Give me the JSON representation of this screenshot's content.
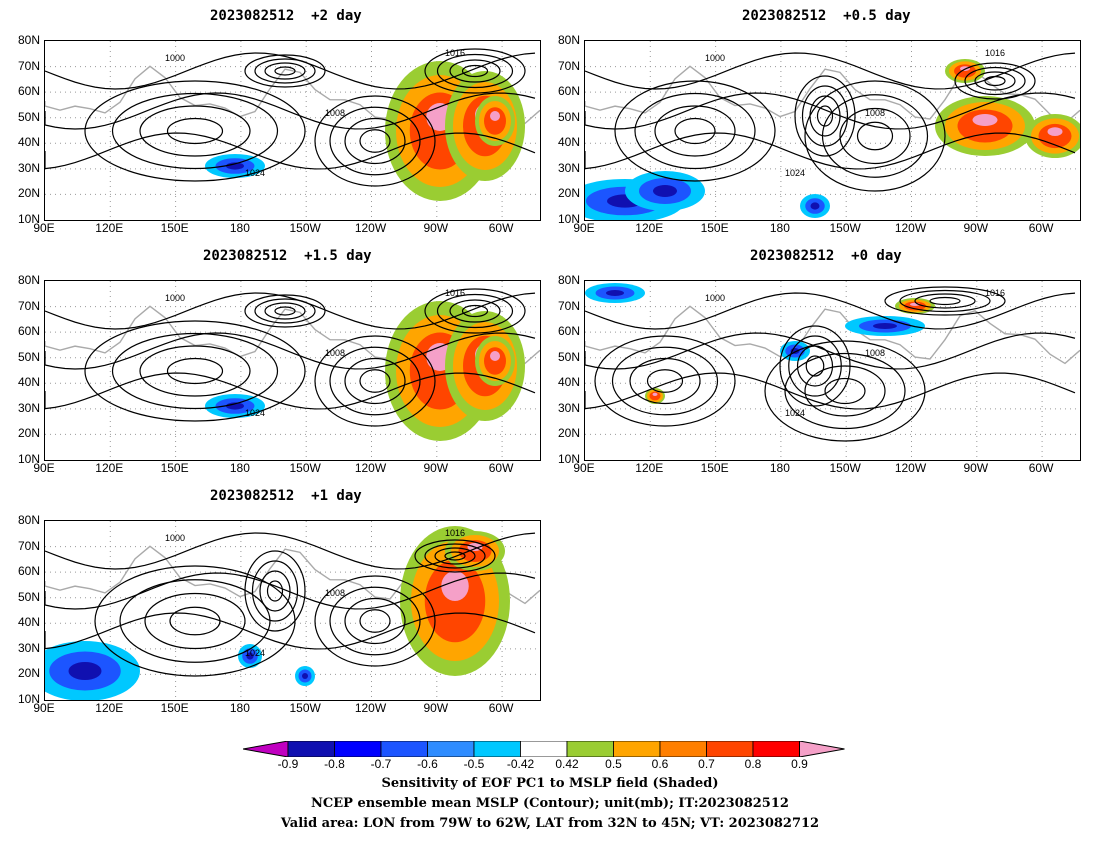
{
  "panels": [
    {
      "title": "2023082512  +2 day",
      "pattern": "a"
    },
    {
      "title": "2023082512  +0.5 day",
      "pattern": "b"
    },
    {
      "title": "2023082512  +1.5 day",
      "pattern": "a"
    },
    {
      "title": "2023082512  +0 day",
      "pattern": "c"
    },
    {
      "title": "2023082512  +1 day",
      "pattern": "d"
    }
  ],
  "lat_ticks": [
    "80N",
    "70N",
    "60N",
    "50N",
    "40N",
    "30N",
    "20N",
    "10N"
  ],
  "lon_ticks": [
    "90E",
    "120E",
    "150E",
    "180",
    "150W",
    "120W",
    "90W",
    "60W"
  ],
  "contour_labels": [
    "1000",
    "1008",
    "1016",
    "1024"
  ],
  "colorbar": {
    "labels": [
      "-0.9",
      "-0.8",
      "-0.7",
      "-0.6",
      "-0.5",
      "-0.42",
      "0.42",
      "0.5",
      "0.6",
      "0.7",
      "0.8",
      "0.9"
    ],
    "colors": [
      "#1010b0",
      "#0000ff",
      "#1c55ff",
      "#2e8cff",
      "#00c8ff",
      "#ffffff",
      "#9acd32",
      "#ffa500",
      "#ff7f00",
      "#ff4500",
      "#ff0000"
    ],
    "low_color": "#c000c0",
    "high_color": "#f5a0c8"
  },
  "caption": {
    "line1": "Sensitivity of EOF PC1 to MSLP field (Shaded)",
    "line2": "NCEP ensemble mean MSLP (Contour); unit(mb); IT:2023082512",
    "line3": "Valid area: LON from 79W to 62W, LAT from 32N to 45N; VT: 2023082712"
  }
}
